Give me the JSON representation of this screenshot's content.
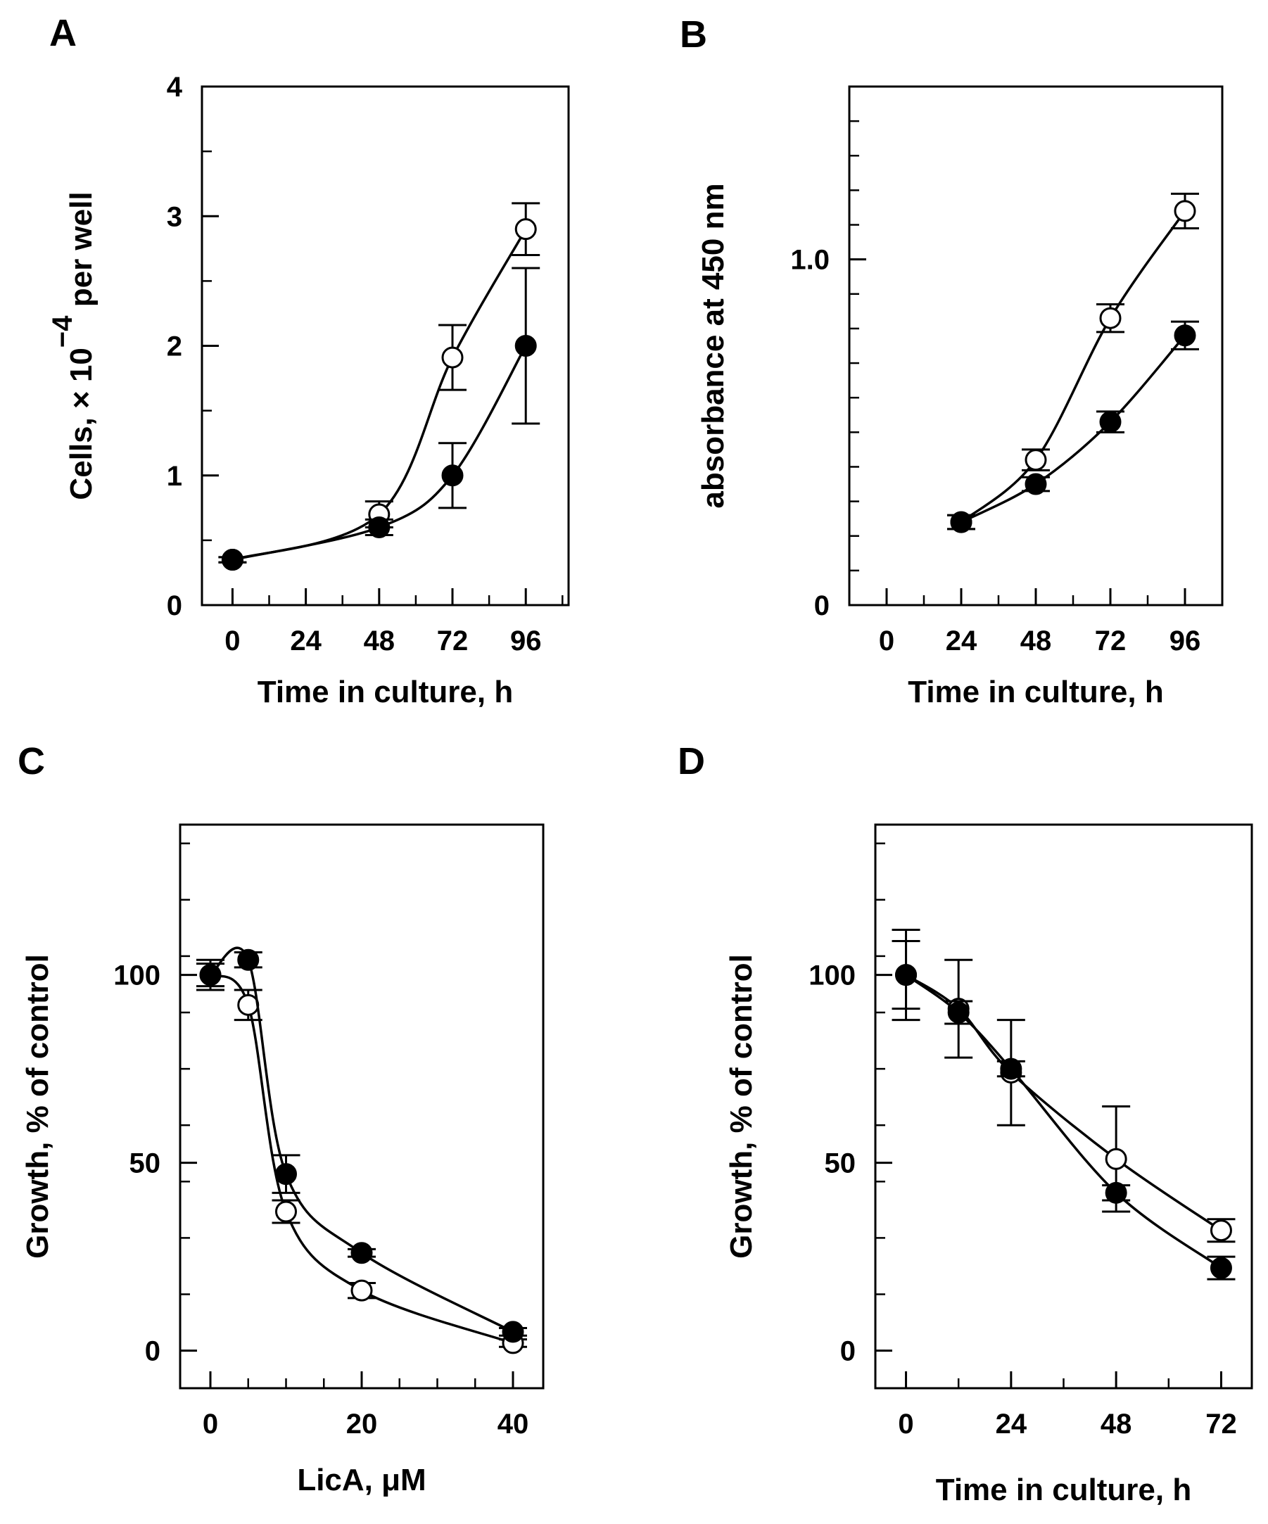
{
  "chart_data": [
    {
      "panel": "A",
      "type": "line",
      "xlabel": "Time in culture, h",
      "ylabel": {
        "pre": "Cells, × 10",
        "sup": "−4",
        "post": " per well"
      },
      "xlim": [
        -10,
        110
      ],
      "ylim": [
        0,
        4
      ],
      "x_ticks": [
        0,
        24,
        48,
        72,
        96
      ],
      "x_tick_labels": [
        "0",
        "24",
        "48",
        "72",
        "96"
      ],
      "y_ticks": [
        0,
        1,
        2,
        3,
        4
      ],
      "y_tick_labels": [
        "0",
        "1",
        "2",
        "3",
        "4"
      ],
      "y_minor_step": 0.5,
      "x_minor_step": 12,
      "series": [
        {
          "marker": "open",
          "x": [
            0,
            48,
            72,
            96
          ],
          "y": [
            0.35,
            0.7,
            1.91,
            2.9
          ],
          "err": [
            0.02,
            0.1,
            0.25,
            0.2
          ]
        },
        {
          "marker": "filled",
          "x": [
            0,
            48,
            72,
            96
          ],
          "y": [
            0.35,
            0.6,
            1.0,
            2.0
          ],
          "err": [
            0.02,
            0.06,
            0.25,
            0.6
          ]
        }
      ]
    },
    {
      "panel": "B",
      "type": "line",
      "xlabel": "Time in culture, h",
      "ylabel": {
        "pre": "absorbance at 450 nm",
        "sup": "",
        "post": ""
      },
      "xlim": [
        -12,
        108
      ],
      "ylim": [
        0,
        1.5
      ],
      "x_ticks": [
        0,
        24,
        48,
        72,
        96
      ],
      "x_tick_labels": [
        "0",
        "24",
        "48",
        "72",
        "96"
      ],
      "y_ticks": [
        0,
        1.0
      ],
      "y_tick_labels": [
        "0",
        "1.0"
      ],
      "y_minor_step": 0.1,
      "x_minor_step": 12,
      "series": [
        {
          "marker": "open",
          "x": [
            24,
            48,
            72,
            96
          ],
          "y": [
            0.24,
            0.42,
            0.83,
            1.14
          ],
          "err": [
            0.02,
            0.03,
            0.04,
            0.05
          ]
        },
        {
          "marker": "filled",
          "x": [
            24,
            48,
            72,
            96
          ],
          "y": [
            0.24,
            0.35,
            0.53,
            0.78
          ],
          "err": [
            0.02,
            0.02,
            0.03,
            0.04
          ]
        }
      ]
    },
    {
      "panel": "C",
      "type": "line",
      "xlabel": "LicA, μM",
      "ylabel": {
        "pre": "Growth, % of control",
        "sup": "",
        "post": ""
      },
      "xlim": [
        -4,
        44
      ],
      "ylim": [
        -10,
        140
      ],
      "x_ticks": [
        0,
        20,
        40
      ],
      "x_tick_labels": [
        "0",
        "20",
        "40"
      ],
      "y_ticks": [
        0,
        50,
        100
      ],
      "y_tick_labels": [
        "0",
        "50",
        "100"
      ],
      "y_minor_step": 15,
      "x_minor_step": 5,
      "series": [
        {
          "marker": "open",
          "x": [
            0,
            5,
            10,
            20,
            40
          ],
          "y": [
            100,
            92,
            37,
            16,
            2
          ],
          "err": [
            3,
            4,
            3,
            2,
            1
          ]
        },
        {
          "marker": "filled",
          "x": [
            0,
            5,
            10,
            20,
            40
          ],
          "y": [
            100,
            104,
            47,
            26,
            5
          ],
          "err": [
            4,
            2,
            5,
            1,
            1
          ]
        }
      ]
    },
    {
      "panel": "D",
      "type": "line",
      "xlabel": "Time in culture, h",
      "ylabel": {
        "pre": "Growth, % of control",
        "sup": "",
        "post": ""
      },
      "xlim": [
        -7,
        79
      ],
      "ylim": [
        -10,
        140
      ],
      "x_ticks": [
        0,
        24,
        48,
        72
      ],
      "x_tick_labels": [
        "0",
        "24",
        "48",
        "72"
      ],
      "y_ticks": [
        0,
        50,
        100
      ],
      "y_tick_labels": [
        "0",
        "50",
        "100"
      ],
      "y_minor_step": 15,
      "x_minor_step": 12,
      "series": [
        {
          "marker": "open",
          "x": [
            0,
            12,
            24,
            48,
            72
          ],
          "y": [
            100,
            91,
            74,
            51,
            32
          ],
          "err": [
            12,
            13,
            14,
            14,
            3
          ]
        },
        {
          "marker": "filled",
          "x": [
            0,
            12,
            24,
            48,
            72
          ],
          "y": [
            100,
            90,
            75,
            42,
            22
          ],
          "err": [
            9,
            3,
            2,
            2,
            3
          ]
        }
      ]
    }
  ]
}
